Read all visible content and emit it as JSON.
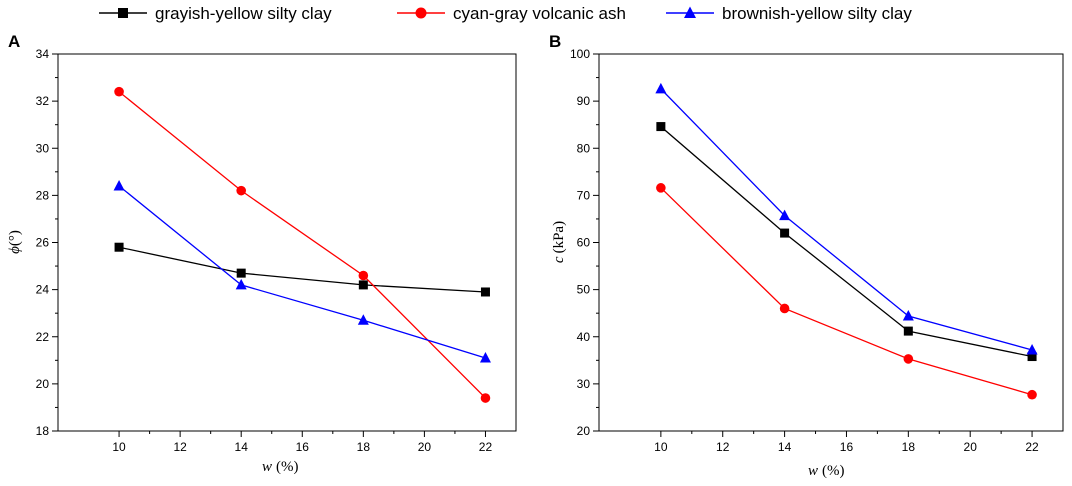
{
  "chart_data": [
    {
      "panel": "A",
      "type": "line",
      "xlabel": "w",
      "xlabel_unit": "(%)",
      "ylabel": "ϕ",
      "ylabel_unit": "(°)",
      "x": [
        10,
        14,
        18,
        22
      ],
      "xlim": [
        8,
        23
      ],
      "ylim": [
        18,
        34
      ],
      "xticks": [
        10,
        12,
        14,
        16,
        18,
        20,
        22
      ],
      "yticks": [
        18,
        20,
        22,
        24,
        26,
        28,
        30,
        32,
        34
      ],
      "series": [
        {
          "name": "grayish-yellow silty clay",
          "values": [
            25.8,
            24.7,
            24.2,
            23.9
          ]
        },
        {
          "name": "cyan-gray volcanic ash",
          "values": [
            32.4,
            28.2,
            24.6,
            19.4
          ]
        },
        {
          "name": "brownish-yellow silty clay",
          "values": [
            28.4,
            24.2,
            22.7,
            21.1
          ]
        }
      ]
    },
    {
      "panel": "B",
      "type": "line",
      "xlabel": "w",
      "xlabel_unit": "(%)",
      "ylabel": "c",
      "ylabel_unit": "(kPa)",
      "x": [
        10,
        14,
        18,
        22
      ],
      "xlim": [
        8,
        23
      ],
      "ylim": [
        20,
        100
      ],
      "xticks": [
        10,
        12,
        14,
        16,
        18,
        20,
        22
      ],
      "yticks": [
        20,
        30,
        40,
        50,
        60,
        70,
        80,
        90,
        100
      ],
      "series": [
        {
          "name": "grayish-yellow silty clay",
          "values": [
            84.6,
            62.0,
            41.2,
            35.8
          ]
        },
        {
          "name": "cyan-gray volcanic ash",
          "values": [
            71.6,
            46.0,
            35.3,
            27.7
          ]
        },
        {
          "name": "brownish-yellow silty clay",
          "values": [
            92.6,
            65.7,
            44.4,
            37.2
          ]
        }
      ]
    }
  ],
  "legend": [
    {
      "label": "grayish-yellow silty clay",
      "color": "#000000",
      "marker": "square"
    },
    {
      "label": "cyan-gray volcanic ash",
      "color": "#ff0000",
      "marker": "circle"
    },
    {
      "label": "brownish-yellow silty clay",
      "color": "#0000ff",
      "marker": "triangle"
    }
  ]
}
